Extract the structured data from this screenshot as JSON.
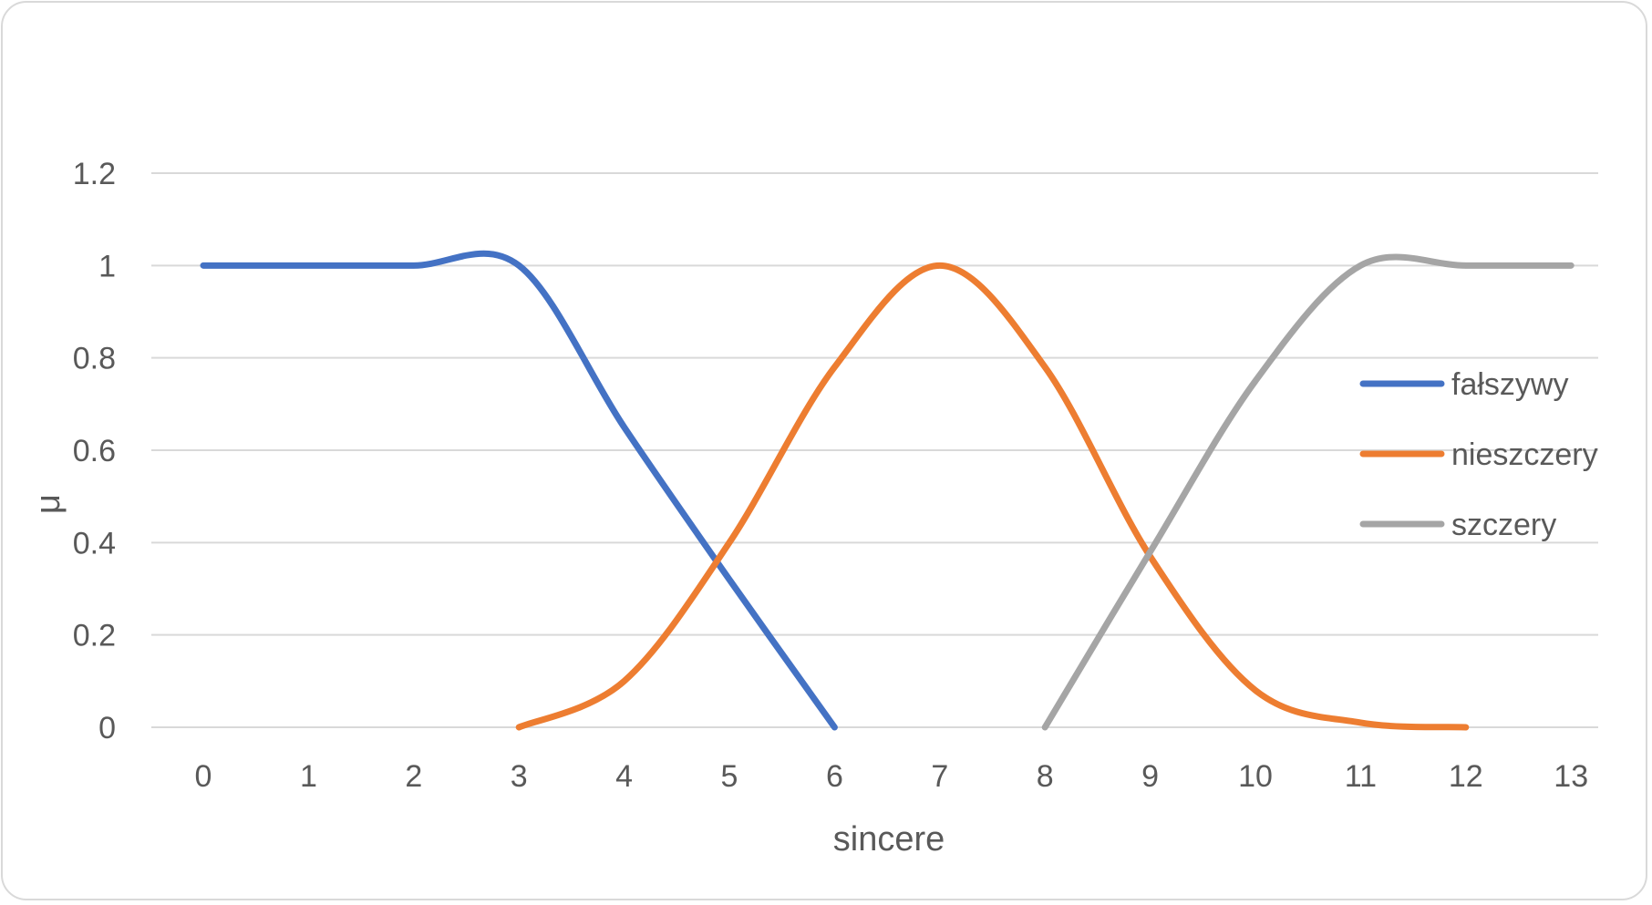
{
  "chart_data": {
    "type": "line",
    "title": "",
    "xlabel": "sincere",
    "ylabel": "μ",
    "categories": [
      "0",
      "1",
      "2",
      "3",
      "4",
      "5",
      "6",
      "7",
      "8",
      "9",
      "10",
      "11",
      "12",
      "13"
    ],
    "ylim": [
      0,
      1.2
    ],
    "yticks": [
      "0",
      "0.2",
      "0.4",
      "0.6",
      "0.8",
      "1",
      "1.2"
    ],
    "grid": true,
    "smooth": true,
    "legend_position": "right",
    "series": [
      {
        "name": "fałszywy",
        "color": "#4472C4",
        "points": [
          [
            0,
            1
          ],
          [
            1,
            1
          ],
          [
            2,
            1
          ],
          [
            3,
            1
          ],
          [
            4,
            0.65
          ],
          [
            5,
            0.32
          ],
          [
            6,
            0
          ]
        ]
      },
      {
        "name": "nieszczery",
        "color": "#ED7D31",
        "points": [
          [
            3,
            0
          ],
          [
            4,
            0.1
          ],
          [
            5,
            0.4
          ],
          [
            6,
            0.78
          ],
          [
            7,
            1
          ],
          [
            8,
            0.78
          ],
          [
            9,
            0.37
          ],
          [
            10,
            0.08
          ],
          [
            11,
            0.01
          ],
          [
            12,
            0
          ]
        ]
      },
      {
        "name": "szczery",
        "color": "#A5A5A5",
        "points": [
          [
            8,
            0
          ],
          [
            9,
            0.38
          ],
          [
            10,
            0.75
          ],
          [
            11,
            1
          ],
          [
            12,
            1
          ],
          [
            13,
            1
          ]
        ]
      }
    ]
  }
}
